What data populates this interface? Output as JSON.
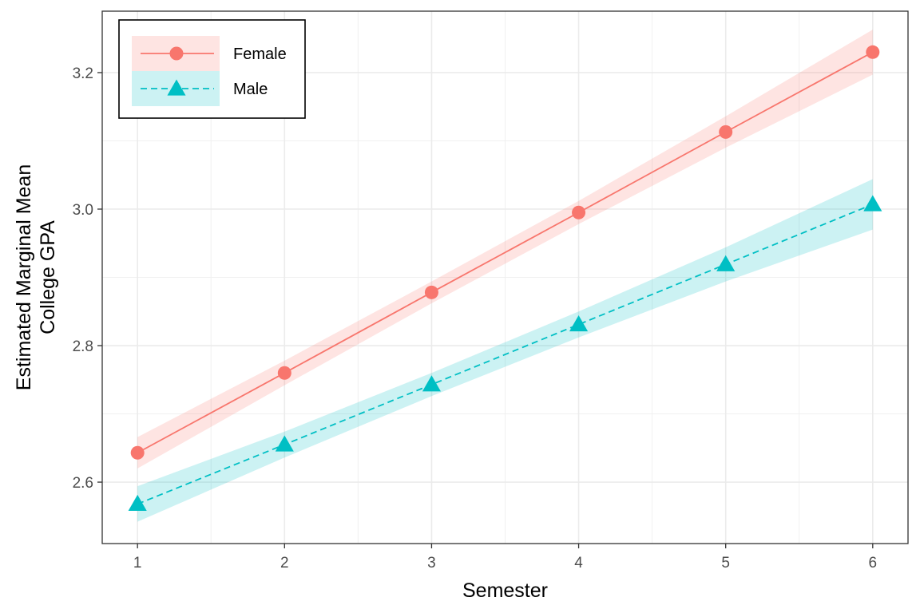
{
  "chart_data": {
    "type": "line",
    "title": "",
    "xlabel": "Semester",
    "ylabel_lines": [
      "Estimated Marginal Mean",
      "College GPA"
    ],
    "x": [
      1,
      2,
      3,
      4,
      5,
      6
    ],
    "x_ticks": [
      "1",
      "2",
      "3",
      "4",
      "5",
      "6"
    ],
    "xlim": [
      0.76,
      6.24
    ],
    "ylim": [
      2.51,
      3.29
    ],
    "y_ticks": [
      2.6,
      2.8,
      3.0,
      3.2
    ],
    "y_tick_labels": [
      "2.6",
      "2.8",
      "3.0",
      "3.2"
    ],
    "grid": true,
    "legend_position": "top-left",
    "series": [
      {
        "name": "Female",
        "color": "#F8766D",
        "ribbon_color": "#F8766D",
        "line_style": "solid",
        "marker": "circle",
        "values": [
          2.643,
          2.76,
          2.878,
          2.995,
          3.113,
          3.23
        ],
        "lower": [
          2.62,
          2.742,
          2.862,
          2.978,
          3.09,
          3.197
        ],
        "upper": [
          2.666,
          2.778,
          2.894,
          3.012,
          3.136,
          3.263
        ]
      },
      {
        "name": "Male",
        "color": "#00BFC4",
        "ribbon_color": "#00BFC4",
        "line_style": "dashed",
        "marker": "triangle",
        "values": [
          2.568,
          2.655,
          2.743,
          2.831,
          2.919,
          3.007
        ],
        "lower": [
          2.542,
          2.636,
          2.726,
          2.812,
          2.894,
          2.97
        ],
        "upper": [
          2.594,
          2.674,
          2.76,
          2.85,
          2.944,
          3.044
        ]
      }
    ]
  }
}
